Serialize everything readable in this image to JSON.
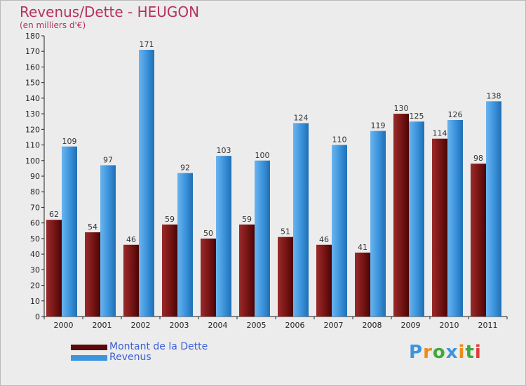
{
  "chart_data": {
    "type": "bar",
    "title": "Revenus/Dette - HEUGON",
    "subtitle": "(en milliers d'€)",
    "xlabel": "",
    "ylabel": "",
    "categories": [
      "2000",
      "2001",
      "2002",
      "2003",
      "2004",
      "2005",
      "2006",
      "2007",
      "2008",
      "2009",
      "2010",
      "2011"
    ],
    "series": [
      {
        "name": "Montant de la Dette",
        "color": "#7a1616",
        "values": [
          62,
          54,
          46,
          59,
          50,
          59,
          51,
          46,
          41,
          130,
          114,
          98
        ]
      },
      {
        "name": "Revenus",
        "color": "#3d95dd",
        "values": [
          109,
          97,
          171,
          92,
          103,
          100,
          124,
          110,
          119,
          125,
          126,
          138
        ]
      }
    ],
    "ylim": [
      0,
      180
    ],
    "yticks": [
      0,
      10,
      20,
      30,
      40,
      50,
      60,
      70,
      80,
      90,
      100,
      110,
      120,
      130,
      140,
      150,
      160,
      170,
      180
    ],
    "grid": false,
    "legend_position": "bottom-left"
  },
  "logo": {
    "text": "Proxiti",
    "letters": [
      "P",
      "r",
      "o",
      "x",
      "i",
      "t",
      "i"
    ],
    "colors": [
      "#3d95dd",
      "#f08a1c",
      "#3fa93a",
      "#3d95dd",
      "#f08a1c",
      "#3fa93a",
      "#e03c3c"
    ]
  }
}
